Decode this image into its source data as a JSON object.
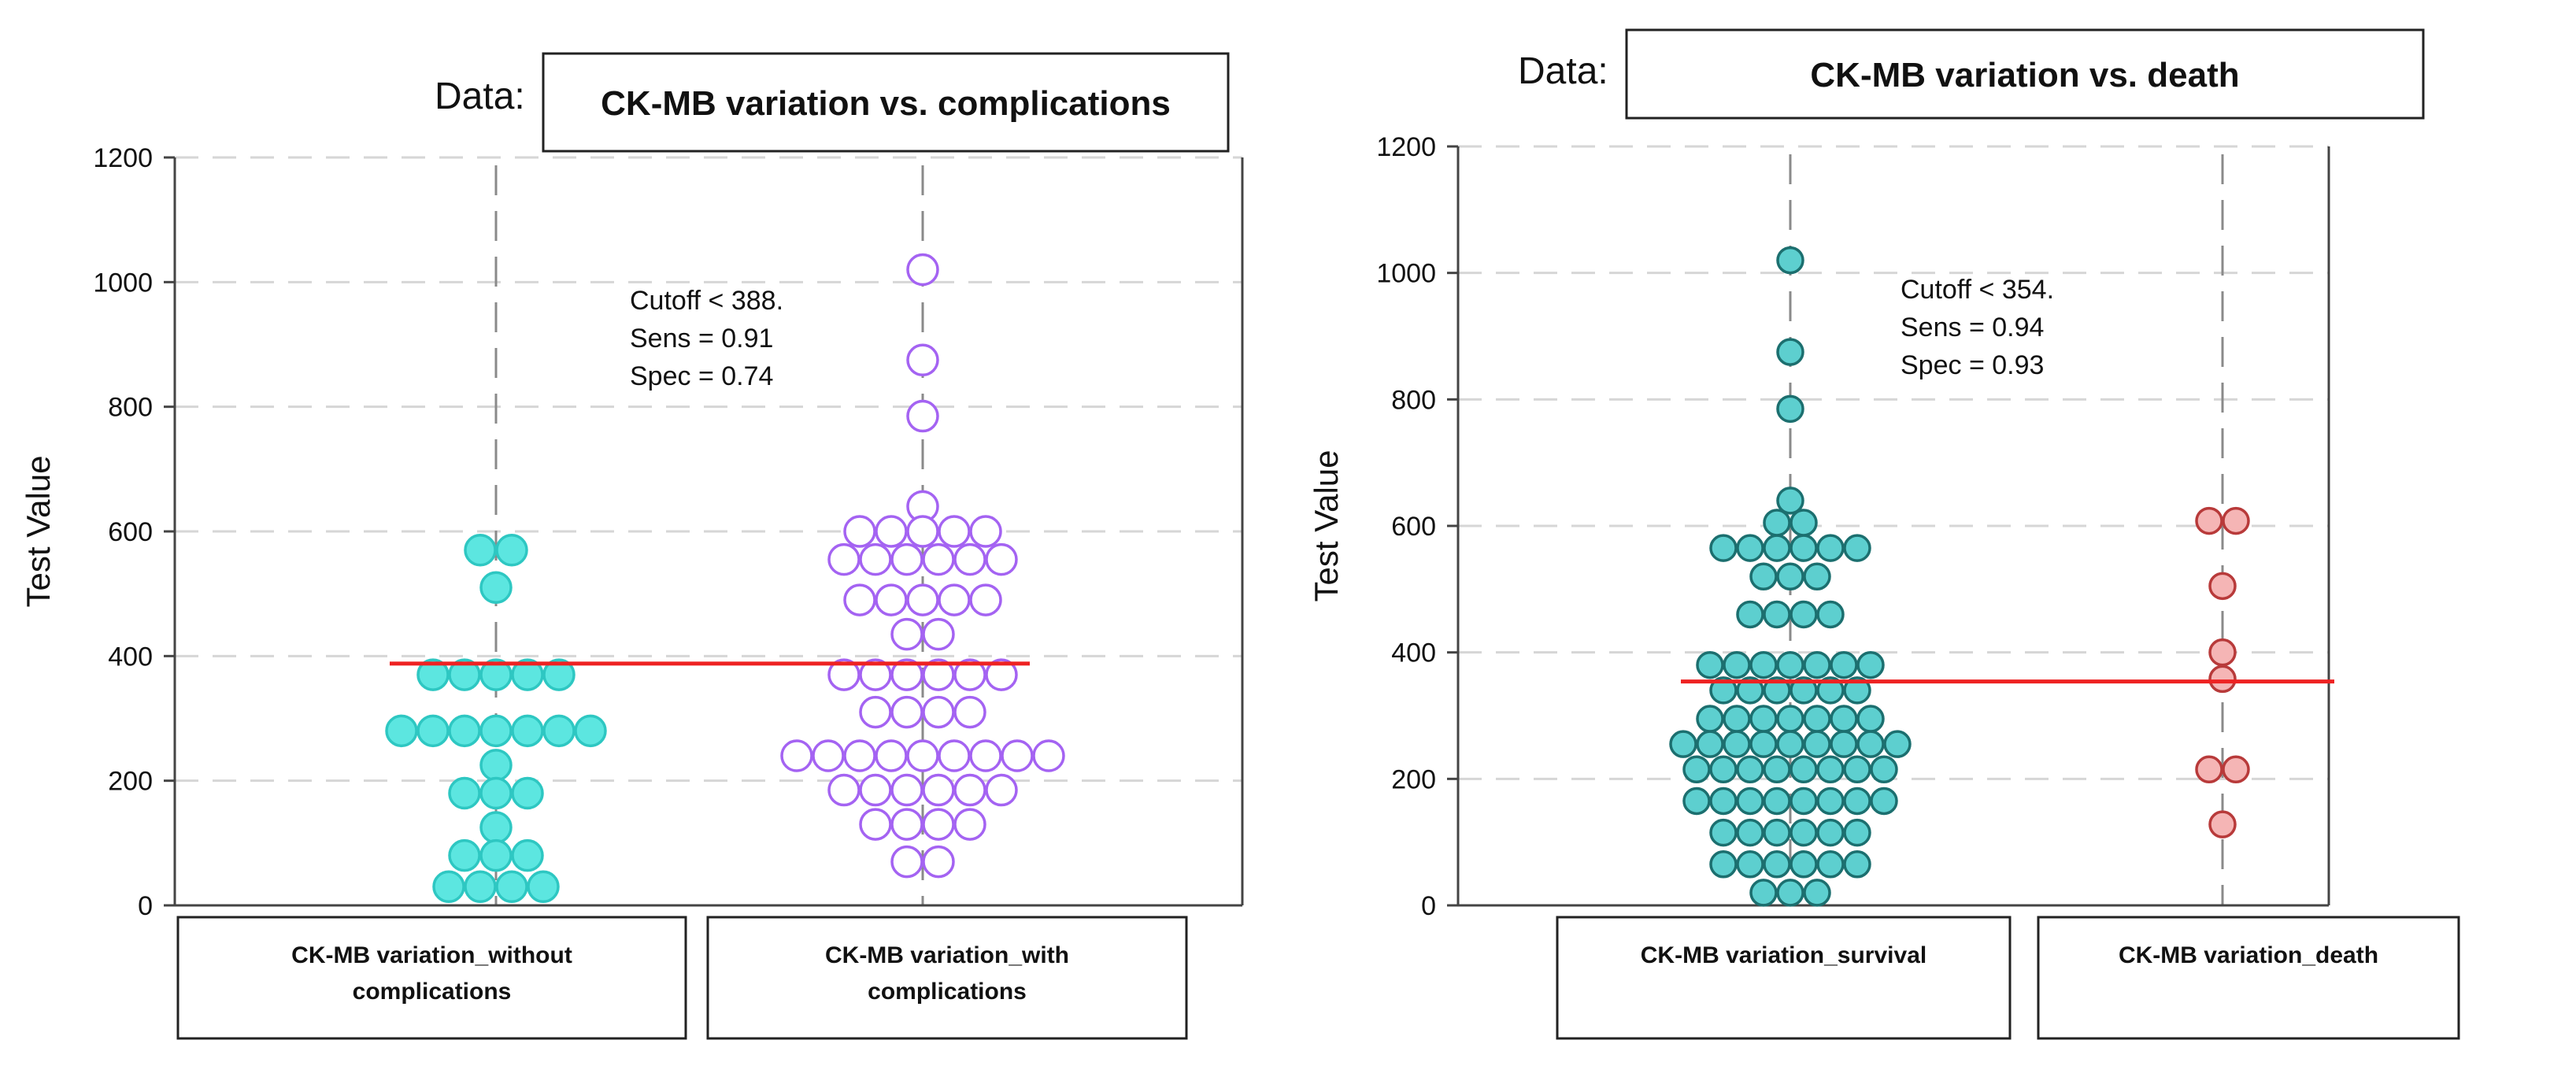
{
  "charts": [
    {
      "type": "scatter",
      "data_prefix": "Data:",
      "title": "CK-MB variation vs. complications",
      "ylabel": "Test Value",
      "ylim": [
        0,
        1200
      ],
      "yticks": [
        0,
        200,
        400,
        600,
        800,
        1000,
        1200
      ],
      "annotation": [
        "Cutoff < 388.",
        "Sens = 0.91",
        "Spec = 0.74"
      ],
      "cutoff": 388,
      "cutoff_color": "#ee2222",
      "groups": [
        {
          "label_lines": [
            "CK-MB variation_without",
            "complications"
          ],
          "marker_fill": "#5ce6e0",
          "marker_stroke": "#2ec7c2",
          "filled": true,
          "rows": [
            {
              "y": 570,
              "n": 2
            },
            {
              "y": 510,
              "n": 1
            },
            {
              "y": 370,
              "n": 5
            },
            {
              "y": 280,
              "n": 7
            },
            {
              "y": 225,
              "n": 1
            },
            {
              "y": 180,
              "n": 3
            },
            {
              "y": 125,
              "n": 1
            },
            {
              "y": 80,
              "n": 3
            },
            {
              "y": 30,
              "n": 4
            }
          ]
        },
        {
          "label_lines": [
            "CK-MB variation_with",
            "complications"
          ],
          "marker_fill": "#ffffff",
          "marker_stroke": "#a463f2",
          "filled": false,
          "rows": [
            {
              "y": 1020,
              "n": 1
            },
            {
              "y": 875,
              "n": 1
            },
            {
              "y": 785,
              "n": 1
            },
            {
              "y": 640,
              "n": 1
            },
            {
              "y": 600,
              "n": 5
            },
            {
              "y": 555,
              "n": 6
            },
            {
              "y": 490,
              "n": 5
            },
            {
              "y": 435,
              "n": 2
            },
            {
              "y": 370,
              "n": 6
            },
            {
              "y": 310,
              "n": 4
            },
            {
              "y": 240,
              "n": 9
            },
            {
              "y": 185,
              "n": 6
            },
            {
              "y": 130,
              "n": 4
            },
            {
              "y": 70,
              "n": 2
            }
          ]
        }
      ]
    },
    {
      "type": "scatter",
      "data_prefix": "Data:",
      "title": "CK-MB variation vs. death",
      "ylabel": "Test Value",
      "ylim": [
        0,
        1200
      ],
      "yticks": [
        0,
        200,
        400,
        600,
        800,
        1000,
        1200
      ],
      "annotation": [
        "Cutoff < 354.",
        "Sens = 0.94",
        "Spec = 0.93"
      ],
      "cutoff": 354,
      "cutoff_color": "#ee2222",
      "groups": [
        {
          "label_lines": [
            "CK-MB variation_survival"
          ],
          "marker_fill": "#5dcfcf",
          "marker_stroke": "#1c6f6f",
          "filled": true,
          "rows": [
            {
              "y": 1020,
              "n": 1
            },
            {
              "y": 875,
              "n": 1
            },
            {
              "y": 785,
              "n": 1
            },
            {
              "y": 640,
              "n": 1
            },
            {
              "y": 605,
              "n": 2
            },
            {
              "y": 565,
              "n": 6
            },
            {
              "y": 520,
              "n": 3
            },
            {
              "y": 460,
              "n": 4
            },
            {
              "y": 380,
              "n": 7
            },
            {
              "y": 340,
              "n": 6
            },
            {
              "y": 295,
              "n": 7
            },
            {
              "y": 255,
              "n": 9
            },
            {
              "y": 215,
              "n": 8
            },
            {
              "y": 165,
              "n": 8
            },
            {
              "y": 115,
              "n": 6
            },
            {
              "y": 65,
              "n": 6
            },
            {
              "y": 20,
              "n": 3
            }
          ]
        },
        {
          "label_lines": [
            "CK-MB variation_death"
          ],
          "marker_fill": "#f5b5b5",
          "marker_stroke": "#b83a3a",
          "filled": true,
          "rows": [
            {
              "y": 608,
              "n": 2
            },
            {
              "y": 505,
              "n": 1
            },
            {
              "y": 400,
              "n": 1
            },
            {
              "y": 358,
              "n": 1
            },
            {
              "y": 215,
              "n": 2
            },
            {
              "y": 128,
              "n": 1
            }
          ]
        }
      ]
    }
  ]
}
